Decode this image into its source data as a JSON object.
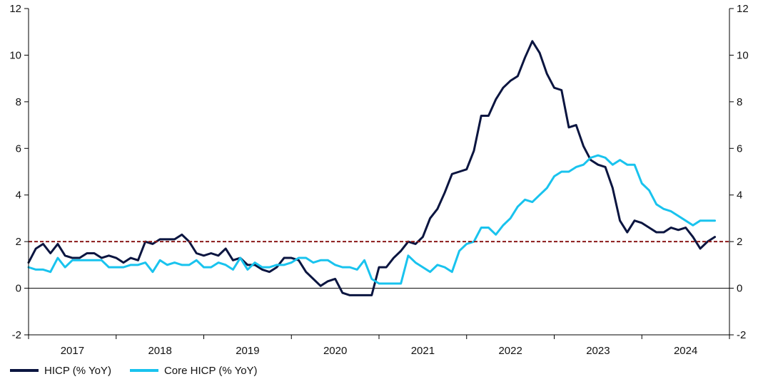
{
  "chart_data": {
    "type": "line",
    "title": "",
    "xlabel": "",
    "ylabel": "",
    "ylim": [
      -2,
      12
    ],
    "yticks": [
      -2,
      0,
      2,
      4,
      6,
      8,
      10,
      12
    ],
    "ytick_labels": [
      "-2",
      "0",
      "2",
      "4",
      "6",
      "8",
      "10",
      "12"
    ],
    "xlim": [
      2016.5,
      2024.5
    ],
    "x_ticks_years": [
      "2017",
      "2018",
      "2019",
      "2020",
      "2021",
      "2022",
      "2023",
      "2024"
    ],
    "reference_line": {
      "y": 2,
      "style": "dashed",
      "color": "#8b1a1a"
    },
    "zero_line": {
      "y": 0,
      "color": "#000000"
    },
    "legend_placement": "bottom-left",
    "x_start": "2016-07",
    "x_step": "month",
    "series": [
      {
        "name": "HICP (% YoY)",
        "color": "#0b1540",
        "values": [
          1.1,
          1.7,
          1.9,
          1.5,
          1.9,
          1.4,
          1.3,
          1.3,
          1.5,
          1.5,
          1.3,
          1.4,
          1.3,
          1.1,
          1.3,
          1.2,
          2.0,
          1.9,
          2.1,
          2.1,
          2.1,
          2.3,
          2.0,
          1.5,
          1.4,
          1.5,
          1.4,
          1.7,
          1.2,
          1.3,
          1.0,
          1.0,
          0.8,
          0.7,
          0.9,
          1.3,
          1.3,
          1.2,
          0.7,
          0.4,
          0.1,
          0.3,
          0.4,
          -0.2,
          -0.3,
          -0.3,
          -0.3,
          -0.3,
          0.9,
          0.9,
          1.3,
          1.6,
          2.0,
          1.9,
          2.2,
          3.0,
          3.4,
          4.1,
          4.9,
          5.0,
          5.1,
          5.9,
          7.4,
          7.4,
          8.1,
          8.6,
          8.9,
          9.1,
          9.9,
          10.6,
          10.1,
          9.2,
          8.6,
          8.5,
          6.9,
          7.0,
          6.1,
          5.5,
          5.3,
          5.2,
          4.3,
          2.9,
          2.4,
          2.9,
          2.8,
          2.6,
          2.4,
          2.4,
          2.6,
          2.5,
          2.6,
          2.2,
          1.7,
          2.0,
          2.2
        ]
      },
      {
        "name": "Core HICP (% YoY)",
        "color": "#19c3ee",
        "values": [
          0.9,
          0.8,
          0.8,
          0.7,
          1.3,
          0.9,
          1.2,
          1.2,
          1.2,
          1.2,
          1.2,
          0.9,
          0.9,
          0.9,
          1.0,
          1.0,
          1.1,
          0.7,
          1.2,
          1.0,
          1.1,
          1.0,
          1.0,
          1.2,
          0.9,
          0.9,
          1.1,
          1.0,
          0.8,
          1.3,
          0.8,
          1.1,
          0.9,
          0.9,
          1.0,
          1.0,
          1.1,
          1.3,
          1.3,
          1.1,
          1.2,
          1.2,
          1.0,
          0.9,
          0.9,
          0.8,
          1.2,
          0.4,
          0.2,
          0.2,
          0.2,
          0.2,
          1.4,
          1.1,
          0.9,
          0.7,
          1.0,
          0.9,
          0.7,
          1.6,
          1.9,
          2.0,
          2.6,
          2.6,
          2.3,
          2.7,
          3.0,
          3.5,
          3.8,
          3.7,
          4.0,
          4.3,
          4.8,
          5.0,
          5.0,
          5.2,
          5.3,
          5.6,
          5.7,
          5.6,
          5.3,
          5.5,
          5.3,
          5.3,
          4.5,
          4.2,
          3.6,
          3.4,
          3.3,
          3.1,
          2.9,
          2.7,
          2.9,
          2.9,
          2.9
        ]
      }
    ]
  }
}
